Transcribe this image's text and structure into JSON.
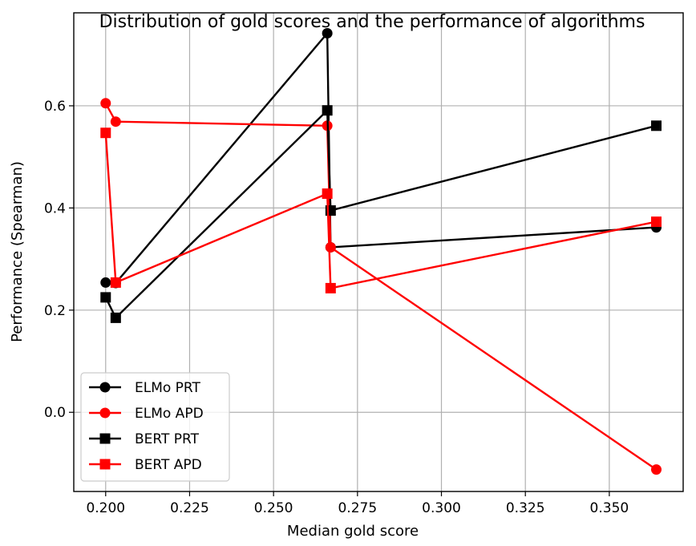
{
  "chart_data": {
    "type": "line",
    "title": "Distribution of gold scores and the performance of algorithms",
    "xlabel": "Median gold score",
    "ylabel": "Performance (Spearman)",
    "xlim": [
      0.1905,
      0.372
    ],
    "ylim": [
      -0.155,
      0.782
    ],
    "xticks": [
      0.2,
      0.225,
      0.25,
      0.275,
      0.3,
      0.325,
      0.35
    ],
    "xtick_labels": [
      "0.200",
      "0.225",
      "0.250",
      "0.275",
      "0.300",
      "0.325",
      "0.350"
    ],
    "yticks": [
      0.0,
      0.2,
      0.4,
      0.6
    ],
    "ytick_labels": [
      "0.0",
      "0.2",
      "0.4",
      "0.6"
    ],
    "grid": true,
    "legend_position": "lower-left",
    "series": [
      {
        "name": "ELMo PRT",
        "color": "#000000",
        "marker": "circle",
        "x": [
          0.2,
          0.203,
          0.266,
          0.267,
          0.364
        ],
        "y": [
          0.254,
          0.253,
          0.742,
          0.323,
          0.362
        ]
      },
      {
        "name": "ELMo APD",
        "color": "#ff0000",
        "marker": "circle",
        "x": [
          0.2,
          0.203,
          0.266,
          0.267,
          0.364
        ],
        "y": [
          0.605,
          0.569,
          0.561,
          0.323,
          -0.112
        ]
      },
      {
        "name": "BERT PRT",
        "color": "#000000",
        "marker": "square",
        "x": [
          0.2,
          0.203,
          0.266,
          0.267,
          0.364
        ],
        "y": [
          0.225,
          0.185,
          0.591,
          0.395,
          0.561
        ]
      },
      {
        "name": "BERT APD",
        "color": "#ff0000",
        "marker": "square",
        "x": [
          0.2,
          0.203,
          0.266,
          0.267,
          0.364
        ],
        "y": [
          0.547,
          0.254,
          0.428,
          0.243,
          0.373
        ]
      }
    ]
  }
}
